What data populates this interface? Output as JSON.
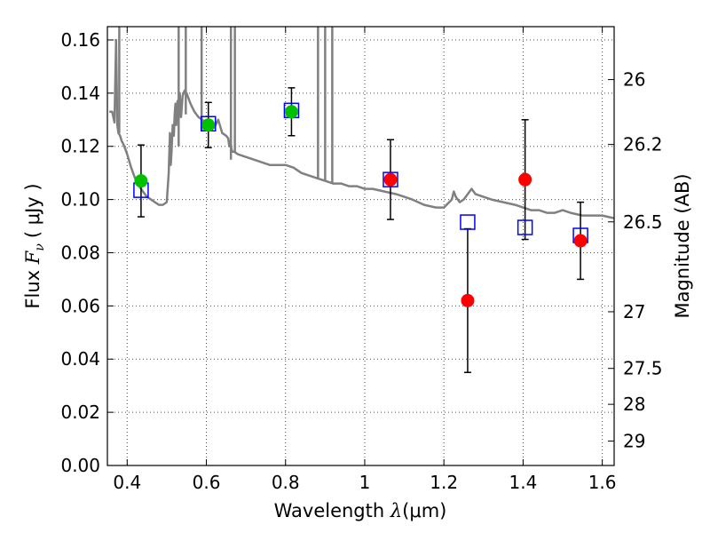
{
  "chart_data": {
    "type": "scatter",
    "xlabel_prefix": "Wavelength  ",
    "xlabel_lambda": "λ",
    "xlabel_unit": "(μm)",
    "ylabel_prefix": "Flux  ",
    "ylabel_F": "F",
    "ylabel_nu": "ν",
    "ylabel_unit": "(  μJy )",
    "ylabel_right": "Magnitude (AB)",
    "xlim": [
      0.35,
      1.63
    ],
    "ylim": [
      0.0,
      0.165
    ],
    "x_ticks": [
      0.4,
      0.6,
      0.8,
      1.0,
      1.2,
      1.4,
      1.6
    ],
    "x_tick_labels": [
      "0.4",
      "0.6",
      "0.8",
      "1",
      "1.2",
      "1.4",
      "1.6"
    ],
    "y_ticks": [
      0.0,
      0.02,
      0.04,
      0.06,
      0.08,
      0.1,
      0.12,
      0.14,
      0.16
    ],
    "y_tick_labels": [
      "0.00",
      "0.02",
      "0.04",
      "0.06",
      "0.08",
      "0.10",
      "0.12",
      "0.14",
      "0.16"
    ],
    "right_ticks": [
      {
        "label": "26",
        "flux": 0.1451
      },
      {
        "label": "26.2",
        "flux": 0.1207
      },
      {
        "label": "26.5",
        "flux": 0.0916
      },
      {
        "label": "27",
        "flux": 0.0578
      },
      {
        "label": "27.5",
        "flux": 0.0365
      },
      {
        "label": "28",
        "flux": 0.023
      },
      {
        "label": "29",
        "flux": 0.0092
      }
    ],
    "grid": true,
    "colors": {
      "model": "#808080",
      "observed_optical": "#00c000",
      "observed_nir": "#ff0000",
      "model_photometry": "#0000ff",
      "errorbar": "#000000"
    },
    "model_spectrum": {
      "x": [
        0.355,
        0.362,
        0.368,
        0.372,
        0.375,
        0.378,
        0.382,
        0.386,
        0.39,
        0.395,
        0.4,
        0.41,
        0.42,
        0.43,
        0.44,
        0.45,
        0.46,
        0.47,
        0.48,
        0.49,
        0.5,
        0.505,
        0.508,
        0.51,
        0.512,
        0.515,
        0.518,
        0.52,
        0.522,
        0.524,
        0.527,
        0.53,
        0.533,
        0.536,
        0.54,
        0.545,
        0.55,
        0.56,
        0.57,
        0.58,
        0.59,
        0.6,
        0.61,
        0.62,
        0.63,
        0.64,
        0.65,
        0.655,
        0.658,
        0.66,
        0.662,
        0.665,
        0.67,
        0.68,
        0.7,
        0.72,
        0.74,
        0.76,
        0.78,
        0.8,
        0.82,
        0.84,
        0.86,
        0.88,
        0.9,
        0.92,
        0.94,
        0.96,
        0.98,
        1.0,
        1.02,
        1.05,
        1.08,
        1.1,
        1.12,
        1.15,
        1.18,
        1.2,
        1.22,
        1.225,
        1.23,
        1.24,
        1.25,
        1.26,
        1.27,
        1.28,
        1.3,
        1.32,
        1.35,
        1.38,
        1.4,
        1.42,
        1.44,
        1.46,
        1.48,
        1.5,
        1.52,
        1.55,
        1.58,
        1.6,
        1.63
      ],
      "y": [
        0.133,
        0.133,
        0.129,
        0.16,
        0.128,
        0.125,
        0.124,
        0.122,
        0.121,
        0.119,
        0.117,
        0.112,
        0.108,
        0.105,
        0.103,
        0.101,
        0.1,
        0.099,
        0.098,
        0.098,
        0.099,
        0.11,
        0.125,
        0.113,
        0.118,
        0.128,
        0.124,
        0.132,
        0.136,
        0.128,
        0.137,
        0.13,
        0.14,
        0.131,
        0.139,
        0.141,
        0.14,
        0.136,
        0.133,
        0.131,
        0.13,
        0.128,
        0.127,
        0.127,
        0.13,
        0.125,
        0.124,
        0.123,
        0.12,
        0.122,
        0.12,
        0.118,
        0.118,
        0.117,
        0.116,
        0.115,
        0.114,
        0.113,
        0.113,
        0.113,
        0.112,
        0.11,
        0.109,
        0.108,
        0.107,
        0.106,
        0.106,
        0.105,
        0.105,
        0.104,
        0.104,
        0.103,
        0.102,
        0.101,
        0.1,
        0.098,
        0.097,
        0.097,
        0.1,
        0.103,
        0.101,
        0.099,
        0.1,
        0.102,
        0.104,
        0.102,
        0.101,
        0.1,
        0.099,
        0.098,
        0.097,
        0.096,
        0.096,
        0.095,
        0.095,
        0.096,
        0.095,
        0.094,
        0.094,
        0.094,
        0.093
      ]
    },
    "model_spikes": [
      {
        "x": 0.38,
        "y_bottom": 0.125
      },
      {
        "x": 0.53,
        "y_bottom": 0.12
      },
      {
        "x": 0.548,
        "y_bottom": 0.132
      },
      {
        "x": 0.588,
        "y_bottom": 0.126
      },
      {
        "x": 0.662,
        "y_bottom": 0.115
      },
      {
        "x": 0.672,
        "y_bottom": 0.118
      },
      {
        "x": 0.882,
        "y_bottom": 0.108
      },
      {
        "x": 0.9,
        "y_bottom": 0.107
      },
      {
        "x": 0.918,
        "y_bottom": 0.106
      }
    ],
    "observed_optical": {
      "x": [
        0.435,
        0.605,
        0.815
      ],
      "y": [
        0.107,
        0.128,
        0.133
      ],
      "err": [
        0.0135,
        0.0085,
        0.009
      ]
    },
    "observed_nir": {
      "x": [
        1.065,
        1.26,
        1.405,
        1.545
      ],
      "y": [
        0.1075,
        0.062,
        0.1075,
        0.0845
      ],
      "err": [
        0.015,
        0.027,
        0.0225,
        0.0145
      ]
    },
    "model_photometry": {
      "x": [
        0.435,
        0.605,
        0.815,
        1.065,
        1.26,
        1.405,
        1.545
      ],
      "y": [
        0.1035,
        0.1285,
        0.1335,
        0.1075,
        0.0915,
        0.0895,
        0.0865
      ]
    }
  }
}
